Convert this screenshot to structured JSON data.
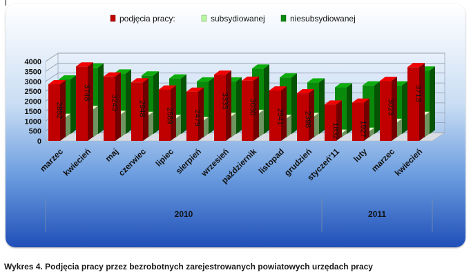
{
  "caption": "Wykres 4. Podjęcia pracy przez bezrobotnych zarejestrowanych powiatowych urzędach pracy",
  "chart_data": {
    "type": "bar",
    "categories": [
      "marzec",
      "kwiecień",
      "maj",
      "czerwiec",
      "lipiec",
      "sierpień",
      "wrzesień",
      "październik",
      "listopad",
      "grudzień",
      "styczeń'11",
      "luty",
      "marzec",
      "kwiecień"
    ],
    "year_groups": [
      {
        "label": "2010",
        "count": 10
      },
      {
        "label": "2011",
        "count": 4
      }
    ],
    "series": [
      {
        "name": "podjęcia pracy:",
        "color": "#c00000",
        "values": [
          2852,
          3748,
          3243,
          2948,
          2589,
          2479,
          3335,
          3030,
          2541,
          2398,
          1832,
          1927,
          3023,
          3713
        ]
      },
      {
        "name": "subsydiowanej",
        "color": "#b7f7a0",
        "values": [
          1000,
          1400,
          1150,
          1100,
          950,
          850,
          1050,
          1200,
          950,
          1050,
          200,
          300,
          750,
          1100
        ]
      },
      {
        "name": "niesubsydiowanej",
        "color": "#0a8a0a",
        "values": [
          2750,
          3350,
          3050,
          2950,
          2800,
          2650,
          2650,
          3300,
          2850,
          2600,
          2350,
          2450,
          2450,
          3200
        ]
      }
    ],
    "data_labels_series": "podjęcia pracy:",
    "y_ticks": [
      0,
      500,
      1000,
      1500,
      2000,
      2500,
      3000,
      3500,
      4000
    ],
    "ylim": [
      0,
      4000
    ],
    "grid": true,
    "legend_position": "top"
  }
}
